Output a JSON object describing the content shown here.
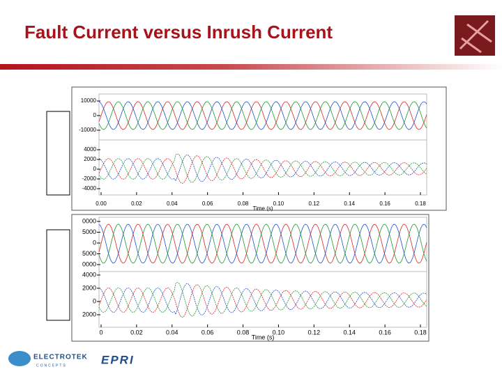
{
  "header": {
    "title": "Fault Current versus Inrush Current"
  },
  "panels": [
    {
      "top_ticks": [
        "10000",
        "0",
        "-10000"
      ],
      "bottom_ticks": [
        "4000",
        "2000",
        "0",
        "-2000",
        "-4000"
      ],
      "x_ticks": [
        "0.00",
        "0.02",
        "0.04",
        "0.06",
        "0.08",
        "0.10",
        "0.12",
        "0.14",
        "0.16",
        "0.18"
      ],
      "x_label": "Time (s)"
    },
    {
      "top_ticks": [
        "0000",
        "5000",
        "0",
        "5000",
        "0000"
      ],
      "bottom_ticks": [
        "4000",
        "2000",
        "0",
        "2000"
      ],
      "x_ticks": [
        "0",
        "0.02",
        "0.04",
        "0.06",
        "0.08",
        "0.10",
        "0.12",
        "0.14",
        "0.16",
        "0.18"
      ],
      "x_label": "Time (s)"
    }
  ],
  "footer": {
    "logo_left": "ELECTROTEK",
    "logo_left_sub": "CONCEPTS",
    "logo_right": "EPRI"
  }
}
